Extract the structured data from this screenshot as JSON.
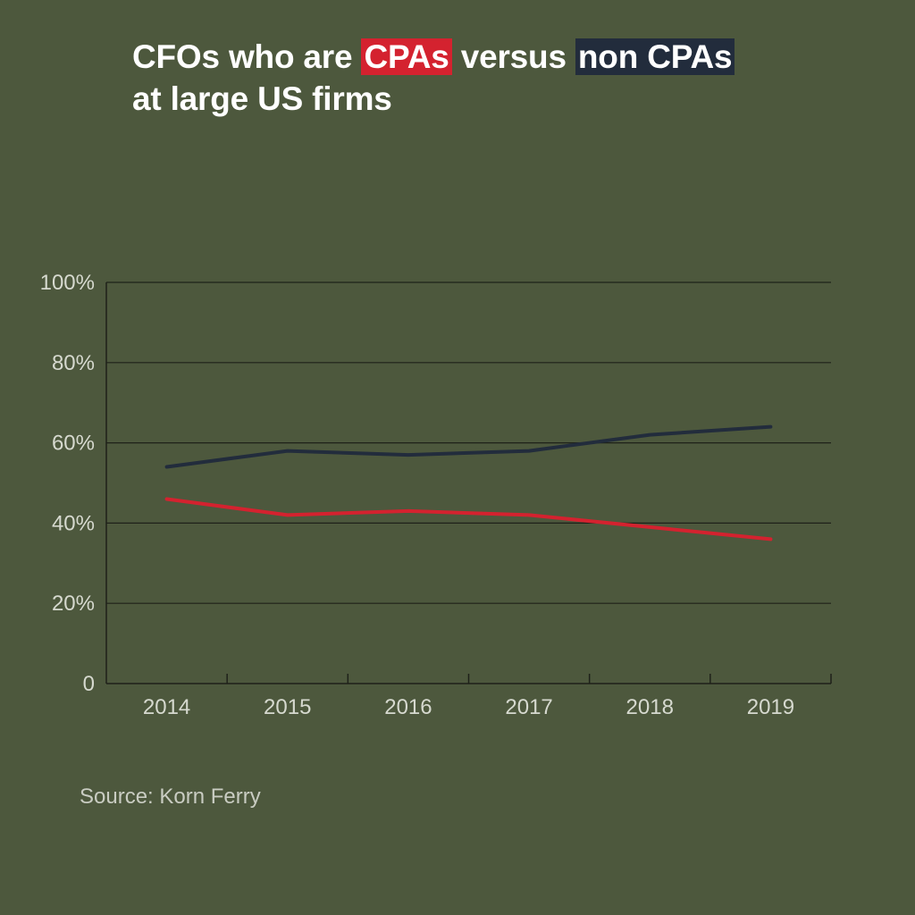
{
  "title": {
    "part1": "CFOs who are ",
    "cpa_label": "CPAs",
    "part2": " versus ",
    "non_cpa_label": "non CPAs",
    "line2": "at large US firms"
  },
  "source": "Source: Korn Ferry",
  "colors": {
    "background": "#4d583d",
    "cpa": "#d4222f",
    "non_cpa": "#222c3c",
    "grid": "#1e2119",
    "tick_text": "#d6d9cf"
  },
  "chart_data": {
    "type": "line",
    "x": [
      "2014",
      "2015",
      "2016",
      "2017",
      "2018",
      "2019"
    ],
    "y_ticks": [
      "0",
      "20%",
      "40%",
      "60%",
      "80%",
      "100%"
    ],
    "ylim": [
      0,
      100
    ],
    "grid": true,
    "series": [
      {
        "name": "non CPAs",
        "color": "#222c3c",
        "values": [
          54,
          58,
          57,
          58,
          62,
          64
        ]
      },
      {
        "name": "CPAs",
        "color": "#d4222f",
        "values": [
          46,
          42,
          43,
          42,
          39,
          36
        ]
      }
    ]
  }
}
